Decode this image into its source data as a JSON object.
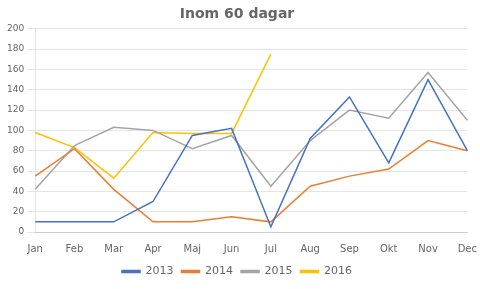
{
  "chart_data": {
    "type": "line",
    "title": "Inom 60 dagar",
    "categories": [
      "Jan",
      "Feb",
      "Mar",
      "Apr",
      "Maj",
      "Jun",
      "Jul",
      "Aug",
      "Sep",
      "Okt",
      "Nov",
      "Dec"
    ],
    "series": [
      {
        "name": "2013",
        "color": "#4472C4",
        "values": [
          10,
          10,
          10,
          30,
          95,
          102,
          5,
          92,
          133,
          68,
          150,
          80
        ]
      },
      {
        "name": "2014",
        "color": "#ED7D31",
        "values": [
          55,
          82,
          42,
          10,
          10,
          15,
          10,
          45,
          55,
          62,
          90,
          80
        ]
      },
      {
        "name": "2015",
        "color": "#A5A5A5",
        "values": [
          42,
          85,
          103,
          100,
          82,
          95,
          45,
          90,
          120,
          112,
          157,
          110
        ]
      },
      {
        "name": "2016",
        "color": "#FFC000",
        "values": [
          98,
          83,
          53,
          98,
          97,
          97,
          175,
          null,
          null,
          null,
          null,
          null
        ]
      }
    ],
    "ylim": [
      0,
      200
    ],
    "yticks": [
      0,
      20,
      40,
      60,
      80,
      100,
      120,
      140,
      160,
      180,
      200
    ],
    "grid": "y",
    "legend": "bottom"
  }
}
